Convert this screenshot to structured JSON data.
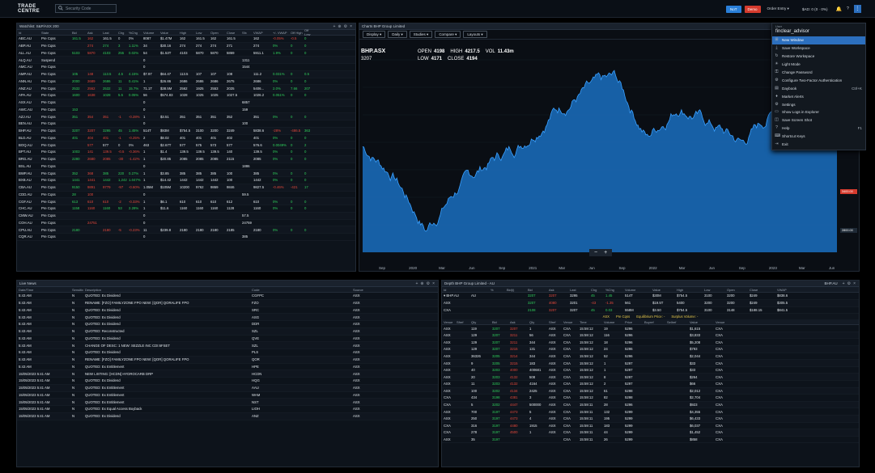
{
  "app": {
    "logo": "TRADE CENTRE",
    "search_placeholder": "Security Code"
  },
  "topbar": {
    "btn_blue": "NoT",
    "btn_red": "Demo",
    "order_entry": "Order Entry ▾",
    "balance": "$AD: 0 (0 · 0%)",
    "bell": "🔔",
    "help": "?",
    "menu": "⋮"
  },
  "watchlist": {
    "title": "Watchlist: S&P/ASX 200",
    "columns": [
      "Id",
      "State",
      "Bid",
      "Ask",
      "Last",
      "Chg",
      "%Chg",
      "Volume",
      "Value",
      "High",
      "Low",
      "Open",
      "Close",
      "Sfx",
      "VWAP",
      "+/- VWAP",
      "Off High",
      "Off Low"
    ],
    "rows": [
      [
        "ABC.AU",
        "Pre Cqss",
        "161.5",
        "162",
        "161.5",
        "0",
        "0%",
        "8087",
        "$1.47M",
        "162",
        "161.5",
        "162",
        "161.5",
        "",
        "162",
        "-0.05%",
        "-0.5",
        "0"
      ],
      [
        "ABP.AU",
        "Pre Cqss",
        "",
        "274",
        "274",
        "3",
        "1.11%",
        "34",
        "$30.16",
        "274",
        "274",
        "274",
        "271",
        "",
        "274",
        "0%",
        "0",
        "0"
      ],
      [
        "ALL.AU",
        "Pre Cqss",
        "5103",
        "5870",
        "4103",
        "255",
        "0.02%",
        "54",
        "$1.53T",
        "4103",
        "5870",
        "5870",
        "5869",
        "",
        "5911.1",
        "1.9%",
        "0",
        "0"
      ],
      [
        "ALQ.AU",
        "Suspend",
        "",
        "",
        "",
        "",
        "",
        "0",
        "",
        "",
        "",
        "",
        "",
        "1311",
        "",
        "",
        "",
        ""
      ],
      [
        "AMC.AU",
        "Pre Cqss",
        "",
        "",
        "",
        "",
        "",
        "0",
        "",
        "",
        "",
        "",
        "",
        "1544",
        "",
        "",
        "",
        ""
      ],
      [
        "AMP.AU",
        "Pre Cqss",
        "105",
        "148",
        "113.5",
        "4.5",
        "4.15%",
        "$7.97",
        "$64.47",
        "113.5",
        "107",
        "107",
        "108",
        "",
        "111.2",
        "0.031%",
        "0",
        "0.5"
      ],
      [
        "ANN.AU",
        "Pre Cqss",
        "2000",
        "2689",
        "2686",
        "11",
        "0.41%",
        "1",
        "$26.86",
        "2686",
        "2686",
        "2686",
        "2675",
        "",
        "2686",
        "0%",
        "0",
        "0"
      ],
      [
        "ANZ.AU",
        "Pre Cqss",
        "2532",
        "2562",
        "2532",
        "11",
        "15.7%",
        "71.1T",
        "$38.5M",
        "2562",
        "1925",
        "2553",
        "2025",
        "",
        "5406...",
        "2.0%",
        "7.66",
        "207"
      ],
      [
        "APA.AU",
        "Pre Cqss",
        "1600",
        "1638",
        "1028",
        "5.5",
        "0.05%",
        "56",
        "$574.83",
        "1028",
        "1025",
        "1025",
        "1027.5",
        "",
        "1026.2",
        "0.051%",
        "0",
        "0"
      ],
      [
        "ASX.AU",
        "Pre Cqss",
        "",
        "",
        "",
        "",
        "",
        "0",
        "",
        "",
        "",
        "",
        "",
        "6857",
        "",
        "",
        "",
        ""
      ],
      [
        "AWC.AU",
        "Pre Cqss",
        "153",
        "",
        "",
        "",
        "",
        "0",
        "",
        "",
        "",
        "",
        "",
        "159",
        "",
        "",
        "",
        ""
      ],
      [
        "AZJ.AU",
        "Pre Cqss",
        "351",
        "354",
        "351",
        "-1",
        "-0.28%",
        "1",
        "$3.51",
        "351",
        "351",
        "351",
        "352",
        "",
        "351",
        "0%",
        "0",
        "0"
      ],
      [
        "BEN.AU",
        "Pre Cqss",
        "",
        "",
        "",
        "",
        "",
        "0",
        "",
        "",
        "",
        "",
        "",
        "100",
        "",
        "",
        "",
        ""
      ],
      [
        "BHP.AU",
        "Pre Cqss",
        "3207",
        "3207",
        "3295",
        "45",
        "1.45%",
        "514T",
        "$93M",
        "$754.5",
        "3100",
        "3200",
        "3249",
        "",
        "5838.6",
        "-28%",
        "-486.5",
        "363"
      ],
      [
        "BLD.AU",
        "Pre Cqss",
        "401",
        "404",
        "401",
        "-1",
        "-0.25%",
        "2",
        "$8.02",
        "401",
        "401",
        "401",
        "402",
        "",
        "401",
        "0%",
        "0",
        "0"
      ],
      [
        "BOQ.AU",
        "Pre Cqss",
        "",
        "577",
        "577",
        "0",
        "0%",
        "463",
        "$2.67T",
        "577",
        "575",
        "573",
        "577",
        "",
        "576.6",
        "0.0049%",
        "0",
        "2"
      ],
      [
        "BPT.AU",
        "Pre Cqss",
        "1003",
        "141",
        "139.5",
        "-0.5",
        "-0.36%",
        "1",
        "$1.4",
        "139.5",
        "139.5",
        "139.5",
        "140",
        "",
        "139.5",
        "0%",
        "0",
        "0"
      ],
      [
        "BRG.AU",
        "Pre Cqss",
        "2280",
        "2680",
        "2085",
        "-30",
        "-1.42%",
        "1",
        "$20.85",
        "2085",
        "2085",
        "2085",
        "2115",
        "",
        "2085",
        "0%",
        "0",
        "0"
      ],
      [
        "BSL.AU",
        "Pre Cqss",
        "",
        "",
        "",
        "",
        "",
        "0",
        "",
        "",
        "",
        "",
        "",
        "1886",
        "",
        "",
        "",
        ""
      ],
      [
        "BWP.AU",
        "Pre Cqss",
        "352",
        "368",
        "385",
        "220",
        "0.27%",
        "1",
        "$3.85",
        "385",
        "385",
        "385",
        "100",
        "",
        "385",
        "0%",
        "0",
        "0"
      ],
      [
        "BXB.AU",
        "Pre Cqss",
        "1441",
        "1441",
        "1442",
        "1,242",
        "1.047%",
        "1",
        "$14.42",
        "1442",
        "1442",
        "1442",
        "100",
        "",
        "1442",
        "0%",
        "0",
        "0"
      ],
      [
        "CBA.AU",
        "Pre Cqss",
        "9150",
        "9891",
        "9779",
        "-97",
        "-0.60%",
        "1.05M",
        "$105M",
        "10200",
        "9762",
        "9869",
        "9846",
        "",
        "9827.5",
        "-0.46%",
        "-421",
        "17"
      ],
      [
        "CDD.AU",
        "Pre Cqss",
        "28",
        "100",
        "",
        "",
        "",
        "0",
        "",
        "",
        "",
        "",
        "",
        "59.5",
        "",
        "",
        "",
        ""
      ],
      [
        "CGF.AU",
        "Pre Cqss",
        "613",
        "610",
        "610",
        "-2",
        "-0.33%",
        "1",
        "$6.1",
        "610",
        "610",
        "610",
        "612",
        "",
        "610",
        "0%",
        "0",
        "0"
      ],
      [
        "CHC.AU",
        "Pre Cqss",
        "1158",
        "1160",
        "1160",
        "53",
        "2.28%",
        "1",
        "$11.6",
        "1160",
        "1160",
        "1160",
        "1128",
        "",
        "1160",
        "0%",
        "0",
        "0"
      ],
      [
        "CMW.AU",
        "Pre Cqss",
        "",
        "",
        "",
        "",
        "",
        "0",
        "",
        "",
        "",
        "",
        "",
        "57.5",
        "",
        "",
        "",
        ""
      ],
      [
        "COH.AU",
        "Pre Cqss",
        "",
        "24751",
        "",
        "",
        "",
        "0",
        "",
        "",
        "",
        "",
        "",
        "24759",
        "",
        "",
        "",
        ""
      ],
      [
        "CPU.AU",
        "Pre Cqss",
        "2180",
        "",
        "2180",
        "-5",
        "-0.23%",
        "11",
        "$239.8",
        "2180",
        "2180",
        "2180",
        "2185",
        "",
        "2180",
        "0%",
        "0",
        "0"
      ],
      [
        "CQR.AU",
        "Pre Cqss",
        "",
        "",
        "",
        "",
        "",
        "0",
        "",
        "",
        "",
        "",
        "",
        "385",
        "",
        "",
        "",
        ""
      ]
    ]
  },
  "chart": {
    "title": "Charts BHP Group Limited",
    "toolbar": [
      "Display ▾",
      "Daily ▾",
      "Studies ▾",
      "Compare ▾",
      "Layouts ▾"
    ],
    "symbol": "BHP.ASX",
    "sub_value": "3207",
    "open_label": "OPEN",
    "open": "4198",
    "high_label": "HIGH",
    "high": "4217.5",
    "vol_label": "VOL",
    "vol": "11.43m",
    "low_label": "LOW",
    "low": "4171",
    "close_label": "CLOSE",
    "close": "4194",
    "zoom_minus": "−",
    "zoom_plus": "+",
    "x_labels": [
      "Sep",
      "2020",
      "Mar",
      "Jun",
      "Sep",
      "2021",
      "Mar",
      "Jun",
      "Sep",
      "2022",
      "Mar",
      "Jun",
      "Sep",
      "2023",
      "Mar",
      "Jun"
    ],
    "y_tags": [
      "4500.00",
      "4194.00",
      "3400.00",
      "2800.00"
    ]
  },
  "chart_data": {
    "type": "area",
    "x": [
      "2019-09",
      "2019-12",
      "2020-03",
      "2020-06",
      "2020-09",
      "2020-12",
      "2021-03",
      "2021-06",
      "2021-08",
      "2021-11",
      "2022-03",
      "2022-06",
      "2022-09",
      "2022-12",
      "2023-03",
      "2023-06"
    ],
    "y": [
      3650,
      3200,
      2350,
      3000,
      3400,
      3700,
      4200,
      4500,
      4700,
      3800,
      4300,
      4000,
      3700,
      4200,
      4700,
      4194
    ],
    "ylim": [
      2000,
      5000
    ]
  },
  "menu": {
    "user_caption": "User",
    "username": "finclear_advisor",
    "items": [
      {
        "icon": "⊞",
        "label": "New Window",
        "shortcut": ""
      },
      {
        "icon": "⤓",
        "label": "Save Workspace",
        "shortcut": ""
      },
      {
        "icon": "↻",
        "label": "Restore Workspace",
        "shortcut": ""
      },
      {
        "icon": "☀",
        "label": "Light Mode",
        "shortcut": ""
      },
      {
        "icon": "⚿",
        "label": "Change Password",
        "shortcut": ""
      },
      {
        "icon": "⚙",
        "label": "Configure Two-Factor Authentication",
        "shortcut": ""
      },
      {
        "icon": "▤",
        "label": "Daybook",
        "shortcut": "Ctrl+K"
      },
      {
        "icon": "♦",
        "label": "Market Alerts",
        "shortcut": ""
      },
      {
        "icon": "⚙",
        "label": "Settings",
        "shortcut": ""
      },
      {
        "icon": "▭",
        "label": "Show Logs in Explorer",
        "shortcut": ""
      },
      {
        "icon": "◫",
        "label": "Save Screen Shot",
        "shortcut": ""
      },
      {
        "icon": "?",
        "label": "Help",
        "shortcut": "F1"
      },
      {
        "icon": "⌨",
        "label": "Shortcut Keys",
        "shortcut": ""
      },
      {
        "icon": "⇥",
        "label": "Exit",
        "shortcut": ""
      }
    ]
  },
  "news": {
    "title": "Live News",
    "columns": [
      "Date/Time",
      "Sensitive",
      "Description",
      "Code",
      "Source"
    ],
    "rows": [
      [
        "5:43 AM",
        "N",
        "QUOTED: Ex Dividend",
        "CGFPC",
        "ASX"
      ],
      [
        "5:43 AM",
        "N",
        "RENAME: [FZO] FAMILYZONE FPO NEW: [QOR] QORALIFE FPO",
        "FZO",
        "ASX"
      ],
      [
        "5:43 AM",
        "N",
        "QUOTED: Ex Dividend",
        "SRC",
        "ASX"
      ],
      [
        "5:43 AM",
        "N",
        "QUOTED: Ex Dividend",
        "ASG",
        "ASX"
      ],
      [
        "5:43 AM",
        "N",
        "QUOTED: Ex Dividend",
        "DDR",
        "ASX"
      ],
      [
        "5:43 AM",
        "N",
        "QUOTED: Reconstructed",
        "SZL",
        "ASX"
      ],
      [
        "5:43 AM",
        "N",
        "QUOTED: Ex Dividend",
        "QVE",
        "ASX"
      ],
      [
        "5:43 AM",
        "N",
        "CHANGE OF DESC: 1 NEW: SEZZLE INC CDI:6FSET",
        "SZL",
        "ASX"
      ],
      [
        "5:43 AM",
        "N",
        "QUOTED: Ex Dividend",
        "PLS",
        "ASX"
      ],
      [
        "5:43 AM",
        "N",
        "RENAME: [FZO] FAMILYZONE FPO NEW: [QOR] QORALIFE FPO",
        "QOR",
        "ASX"
      ],
      [
        "5:43 AM",
        "N",
        "QUOTED: Ex Entitlement",
        "HPE",
        "ASX"
      ],
      [
        "15/05/2023 5:41 AM",
        "N",
        "NEW LISTING: [HCDN] HYDROCARB DRP",
        "HCDN",
        "ASX"
      ],
      [
        "15/05/2023 5:41 AM",
        "N",
        "QUOTED: Ex Dividend",
        "HQG",
        "ASX"
      ],
      [
        "15/05/2023 5:41 AM",
        "N",
        "QUOTED: Ex Entitlement",
        "AAU",
        "ASX"
      ],
      [
        "15/05/2023 5:41 AM",
        "N",
        "QUOTED: Ex Entitlement",
        "WAM",
        "ASX"
      ],
      [
        "15/05/2023 5:41 AM",
        "N",
        "QUOTED: Ex Entitlement",
        "NST",
        "ASX"
      ],
      [
        "15/05/2023 5:41 AM",
        "N",
        "QUOTED: Ex Equal Access Buyback",
        "LIOH",
        "ASX"
      ],
      [
        "15/05/2023 5:41 AM",
        "N",
        "QUOTED: Ex Dividend",
        "ANZ",
        "ASX"
      ]
    ]
  },
  "depth": {
    "title": "Depth BHP Group Limited - AU",
    "symbol_tag": "BHP.AU",
    "columns": [
      "Id",
      "",
      "%",
      "Bid(i)",
      "Bid",
      "Ask",
      "Last",
      "Chg",
      "%Chg",
      "Volume",
      "Value",
      "High",
      "Low",
      "Open",
      "Close",
      "VWAP"
    ],
    "rows": [
      [
        "▾ BHP.AU",
        "AU",
        "",
        "",
        "3207",
        "3207",
        "3295",
        "45",
        "1.45",
        "514T",
        "$30M",
        "$754.5",
        "3100",
        "3200",
        "$249",
        "$838.6"
      ],
      [
        "ASX",
        "",
        "",
        "",
        "3207",
        "4080",
        "3201",
        "-43",
        "-1.35",
        "561",
        "$19.5T",
        "5400",
        "3200",
        "3200",
        "$249",
        "$305.5"
      ],
      [
        "CXA",
        "",
        "",
        "",
        "2108",
        "3207",
        "3207",
        "45",
        "0.03",
        "558M",
        "$3.50",
        "$754.5",
        "3100",
        "3148",
        "$188.15",
        "$841.5"
      ]
    ],
    "status": {
      "a": "ASX",
      "b": "Pre Cqss",
      "c": "Equilibrium Price: -",
      "d": "Surplus Volume: -"
    },
    "book_columns": [
      "Venue",
      "Sfref",
      "Qty",
      "Bid",
      "Ask",
      "Qty",
      "Sfref",
      "Venue",
      "Time",
      "Volume",
      "Price",
      "Buyref",
      "Sellref",
      "Value",
      "Venue"
    ],
    "book": [
      [
        "ASX",
        "",
        "119",
        "3207",
        "3207",
        "1",
        "ASX",
        "CXA",
        "15:59:12",
        "19",
        "5296",
        "",
        "",
        "$1,615",
        "CXA"
      ],
      [
        "ASX",
        "",
        "129",
        "3207",
        "3211",
        "56",
        "ASX",
        "CXA",
        "15:59:12",
        "116",
        "5296",
        "",
        "",
        "$3,833",
        "CXA"
      ],
      [
        "ASX",
        "",
        "129",
        "3207",
        "3211",
        "344",
        "ASX",
        "CXA",
        "15:59:12",
        "18",
        "5296",
        "",
        "",
        "$5,208",
        "CXA"
      ],
      [
        "ASX",
        "",
        "129",
        "3207",
        "3215",
        "131",
        "ASX",
        "CXA",
        "15:59:12",
        "24",
        "5296",
        "",
        "",
        "$793",
        "CXA"
      ],
      [
        "ASX",
        "",
        "36326",
        "3205",
        "3214",
        "344",
        "ASX",
        "CXA",
        "15:59:12",
        "52",
        "5296",
        "",
        "",
        "$2,044",
        "CXA"
      ],
      [
        "ASX",
        "",
        "9",
        "3205",
        "3215",
        "183",
        "ASX",
        "CXA",
        "15:59:12",
        "1",
        "5297",
        "",
        "",
        "$33",
        "CXA"
      ],
      [
        "ASX",
        "",
        "40",
        "3203",
        "4000",
        "400681",
        "ASX",
        "CXA",
        "15:59:12",
        "1",
        "5297",
        "",
        "",
        "$33",
        "CXA"
      ],
      [
        "ASX",
        "",
        "20",
        "3203",
        "4132",
        "508",
        "ASX",
        "CXA",
        "15:59:12",
        "8",
        "5297",
        "",
        "",
        "$264",
        "CXA"
      ],
      [
        "ASX",
        "",
        "11",
        "3203",
        "4132",
        "4164",
        "ASX",
        "CXA",
        "15:59:12",
        "2",
        "5297",
        "",
        "",
        "$66",
        "CXA"
      ],
      [
        "ASX",
        "",
        "100",
        "3202",
        "4134",
        "2425",
        "ASX",
        "CXA",
        "15:59:12",
        "61",
        "5298",
        "",
        "",
        "$2,012",
        "CXA"
      ],
      [
        "CXA",
        "",
        "434",
        "3198",
        "4381",
        "3",
        "ASX",
        "CXA",
        "15:59:12",
        "82",
        "5298",
        "",
        "",
        "$2,704",
        "CXA"
      ],
      [
        "CXA",
        "",
        "5",
        "3202",
        "4447",
        "500000",
        "ASX",
        "CXA",
        "15:59:11",
        "28",
        "5296",
        "",
        "",
        "$923",
        "CXA"
      ],
      [
        "ASX",
        "",
        "700",
        "3197",
        "4473",
        "5",
        "ASX",
        "CXA",
        "15:59:11",
        "132",
        "5299",
        "",
        "",
        "$4,355",
        "CXA"
      ],
      [
        "ASX",
        "",
        "250",
        "3197",
        "4473",
        "4",
        "ASX",
        "CXA",
        "15:59:11",
        "195",
        "5299",
        "",
        "",
        "$6,433",
        "CXA"
      ],
      [
        "CXA",
        "",
        "316",
        "3197",
        "4480",
        "1915",
        "ASX",
        "CXA",
        "15:59:11",
        "183",
        "5299",
        "",
        "",
        "$6,037",
        "CXA"
      ],
      [
        "CXA",
        "",
        "278",
        "3197",
        "4500",
        "1",
        "ASX",
        "CXA",
        "15:59:11",
        "44",
        "5299",
        "",
        "",
        "$1,452",
        "CXA"
      ],
      [
        "ASX",
        "",
        "35",
        "3197",
        "",
        "",
        "",
        "CXA",
        "15:59:11",
        "26",
        "5299",
        "",
        "",
        "$858",
        "CXA"
      ]
    ]
  },
  "colors": {
    "accent": "#2a7fd8",
    "up": "#2fcf5b",
    "down": "#e5483b",
    "chart_fill": "#1a6fc0",
    "chart_line": "#3aa0ff"
  }
}
